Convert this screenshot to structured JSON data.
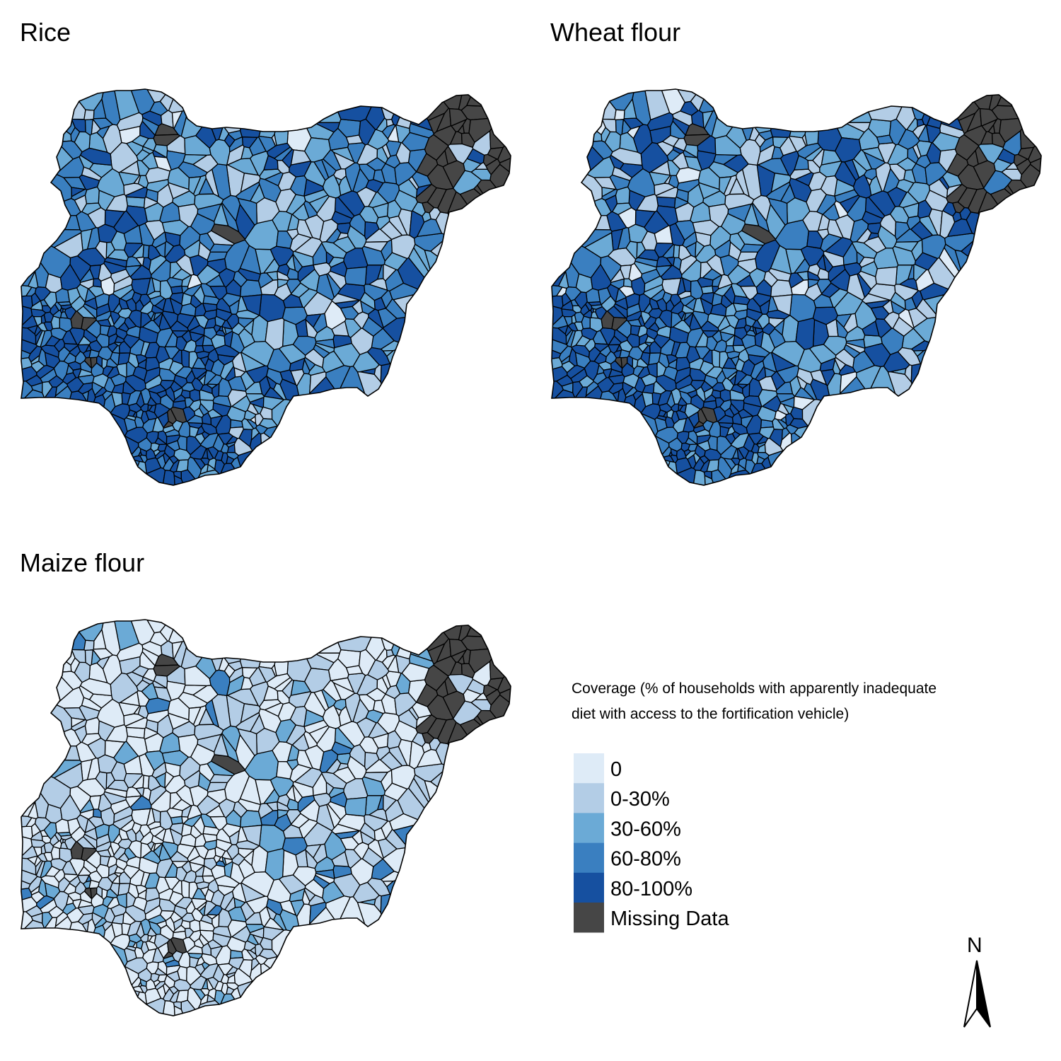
{
  "panels": [
    {
      "title": "Rice",
      "class_weights": [
        0.02,
        0.2,
        0.28,
        0.28,
        0.22
      ]
    },
    {
      "title": "Wheat flour",
      "class_weights": [
        0.03,
        0.25,
        0.25,
        0.27,
        0.2
      ]
    },
    {
      "title": "Maize flour",
      "class_weights": [
        0.5,
        0.36,
        0.12,
        0.02,
        0.0
      ]
    }
  ],
  "legend": {
    "title_line1": "Coverage (% of households with apparently inadequate",
    "title_line2": "diet with access to the fortification vehicle)",
    "items": [
      {
        "label": "0",
        "color": "#deebf7"
      },
      {
        "label": "0-30%",
        "color": "#b3cde6"
      },
      {
        "label": "30-60%",
        "color": "#6baad6"
      },
      {
        "label": "60-80%",
        "color": "#3a7fc0"
      },
      {
        "label": "80-100%",
        "color": "#1650a0"
      },
      {
        "label": "Missing Data",
        "color": "#464646"
      }
    ]
  },
  "north_arrow": {
    "label": "N"
  }
}
